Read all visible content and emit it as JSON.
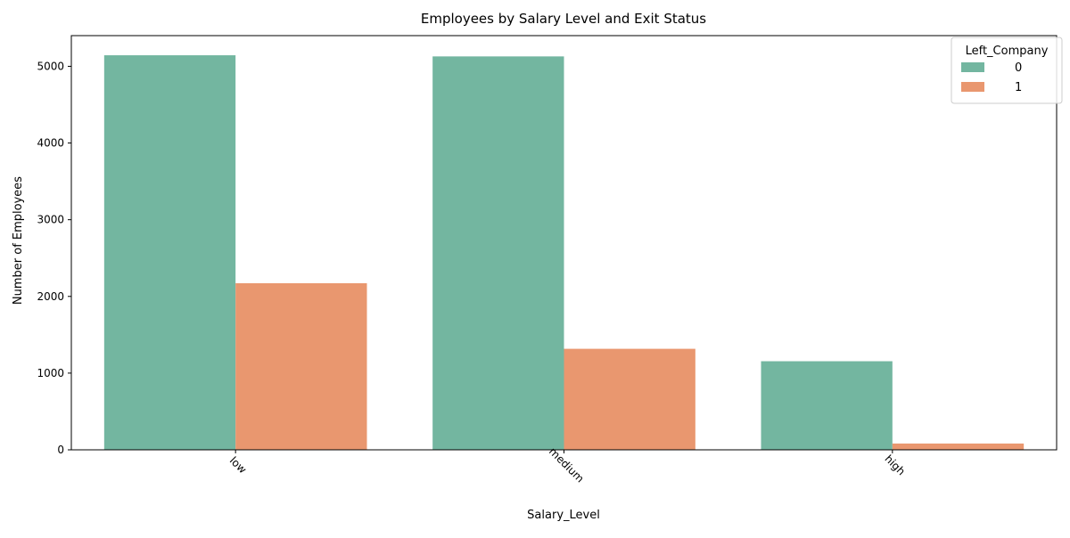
{
  "chart_data": {
    "type": "bar",
    "title": "Employees by Salary Level and Exit Status",
    "xlabel": "Salary_Level",
    "ylabel": "Number of Employees",
    "categories": [
      "low",
      "medium",
      "high"
    ],
    "series": [
      {
        "name": "0",
        "values": [
          5144,
          5129,
          1155
        ],
        "color": "#73b6a0"
      },
      {
        "name": "1",
        "values": [
          2172,
          1317,
          82
        ],
        "color": "#e9976f"
      }
    ],
    "ylim": [
      0,
      5400
    ],
    "yticks": [
      0,
      1000,
      2000,
      3000,
      4000,
      5000
    ],
    "grid": false,
    "legend": {
      "title": "Left_Company",
      "placement": "top-right"
    }
  }
}
